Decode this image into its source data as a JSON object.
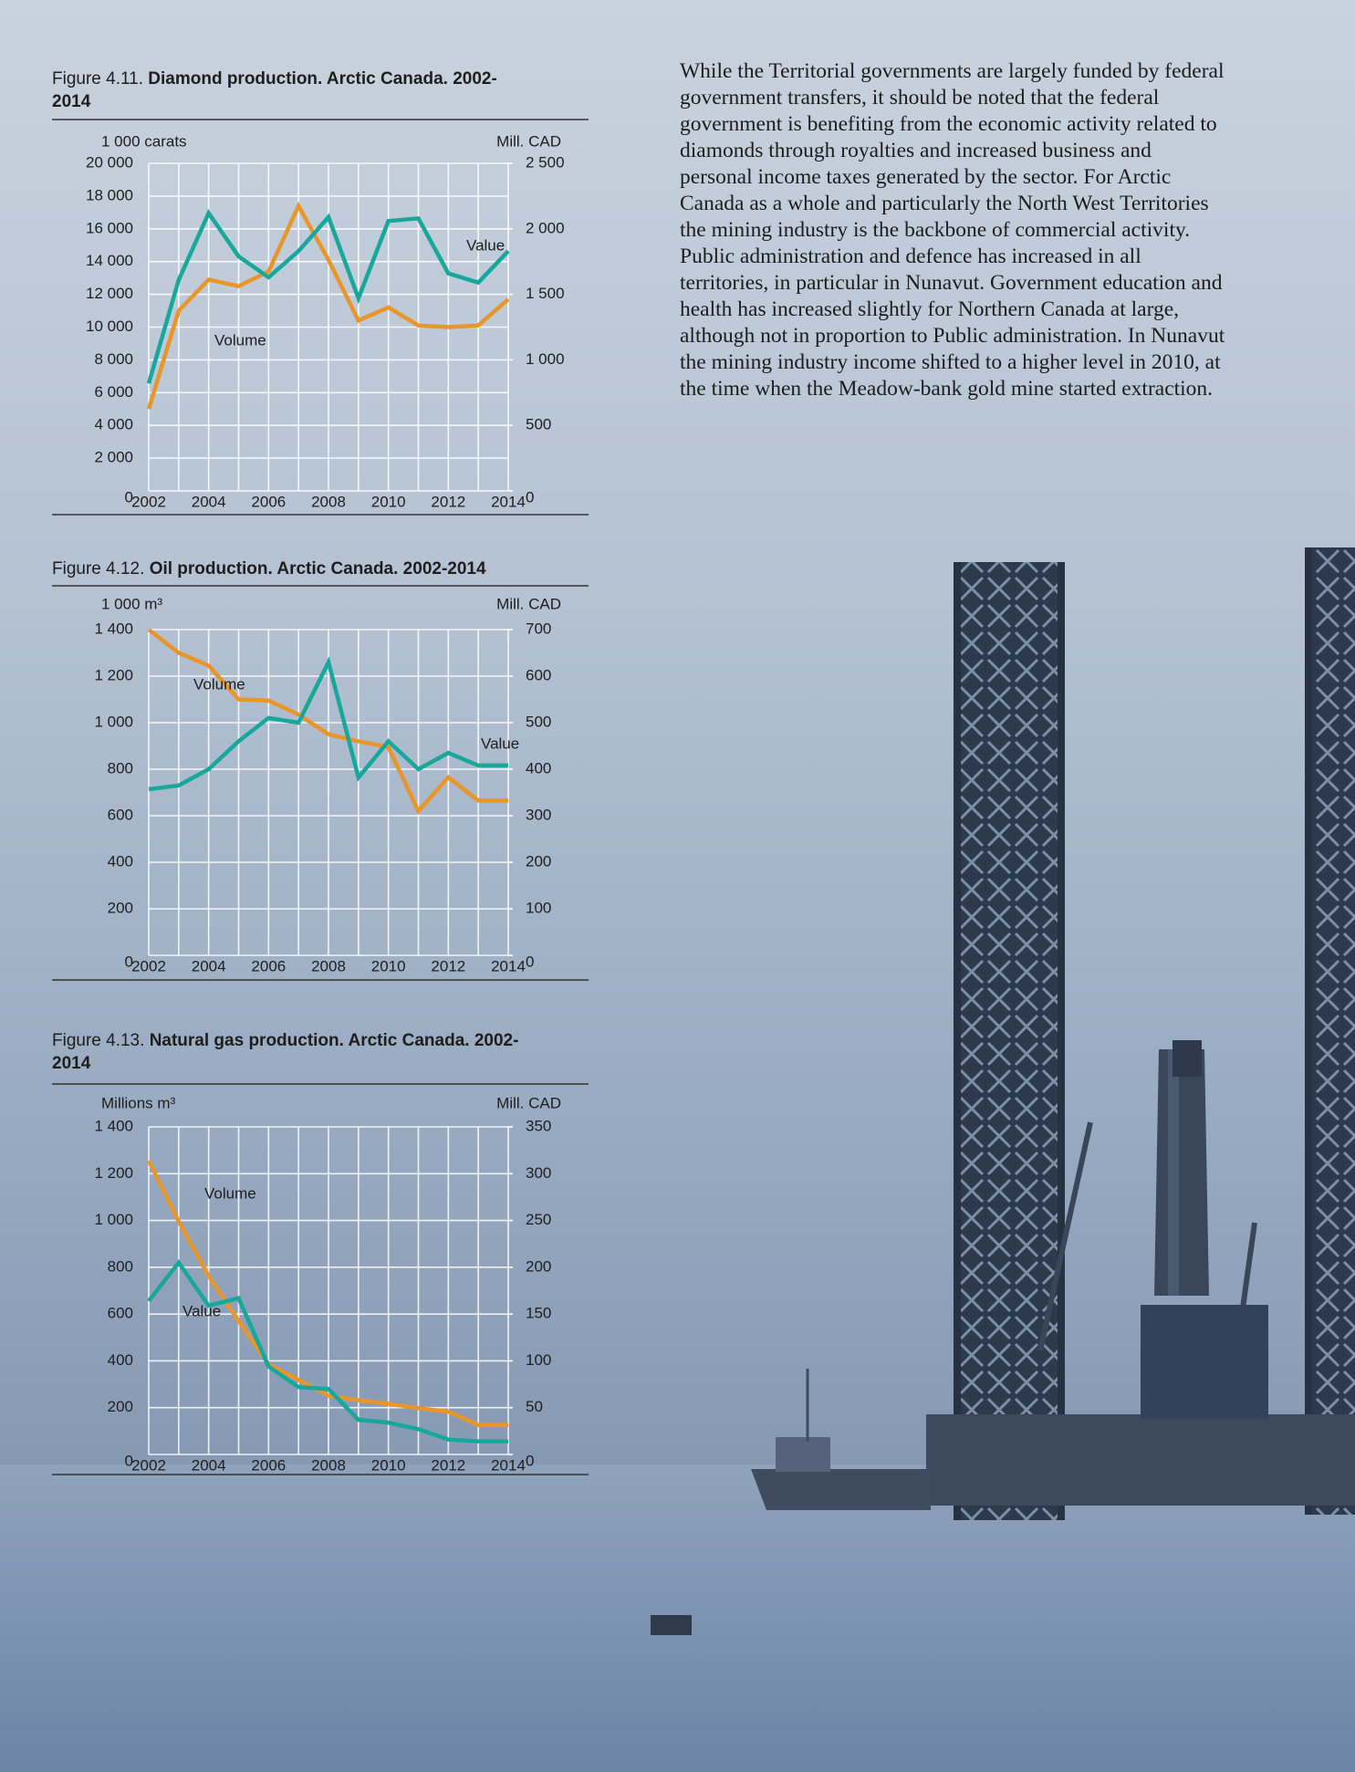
{
  "chart_data": [
    {
      "type": "line",
      "label": "Figure 4.11.",
      "title": "Diamond production. Arctic Canada. 2002-2014",
      "ylabel": "1 000 carats",
      "y2label": "Mill. CAD",
      "x": [
        2002,
        2003,
        2004,
        2005,
        2006,
        2007,
        2008,
        2009,
        2010,
        2011,
        2012,
        2013,
        2014
      ],
      "xlim": [
        2002,
        2014
      ],
      "xticks": [
        2002,
        2004,
        2006,
        2008,
        2010,
        2012,
        2014
      ],
      "ylim": [
        0,
        20000
      ],
      "yticks": [
        0,
        {
          "value": 2000,
          "label": "2 000"
        },
        {
          "value": 4000,
          "label": "4 000"
        },
        {
          "value": 6000,
          "label": "6 000"
        },
        {
          "value": 8000,
          "label": "8 000"
        },
        {
          "value": 10000,
          "label": "10 000"
        },
        {
          "value": 12000,
          "label": "12 000"
        },
        {
          "value": 14000,
          "label": "14 000"
        },
        {
          "value": 16000,
          "label": "16 000"
        },
        {
          "value": 18000,
          "label": "18 000"
        },
        {
          "value": 20000,
          "label": "20 000"
        }
      ],
      "y2lim": [
        0,
        2500
      ],
      "y2ticks": [
        0,
        500,
        {
          "value": 1000,
          "label": "1 000"
        },
        {
          "value": 1500,
          "label": "1 500"
        },
        {
          "value": 2000,
          "label": "2 000"
        },
        {
          "value": 2500,
          "label": "2 500"
        }
      ],
      "grid": true,
      "series": [
        {
          "name": "Volume",
          "color": "#e8962a",
          "values": [
            5000,
            11000,
            12900,
            12500,
            13400,
            17400,
            14100,
            10400,
            11200,
            10100,
            10000,
            10100,
            11700
          ]
        },
        {
          "name": "Value",
          "color": "#17a89b",
          "axis": "y2",
          "values": [
            820,
            1610,
            2120,
            1790,
            1630,
            1830,
            2090,
            1470,
            2060,
            2080,
            1660,
            1590,
            1830
          ]
        }
      ]
    },
    {
      "type": "line",
      "label": "Figure 4.12.",
      "title": "Oil production. Arctic Canada. 2002-2014",
      "ylabel": "1 000 m³",
      "y2label": "Mill. CAD",
      "x": [
        2002,
        2003,
        2004,
        2005,
        2006,
        2007,
        2008,
        2009,
        2010,
        2011,
        2012,
        2013,
        2014
      ],
      "xlim": [
        2002,
        2014
      ],
      "xticks": [
        2002,
        2004,
        2006,
        2008,
        2010,
        2012,
        2014
      ],
      "ylim": [
        0,
        1400
      ],
      "yticks": [
        0,
        200,
        400,
        600,
        800,
        {
          "value": 1000,
          "label": "1 000"
        },
        {
          "value": 1200,
          "label": "1 200"
        },
        {
          "value": 1400,
          "label": "1 400"
        }
      ],
      "y2lim": [
        0,
        700
      ],
      "y2ticks": [
        0,
        100,
        200,
        300,
        400,
        500,
        600,
        700
      ],
      "grid": true,
      "series": [
        {
          "name": "Volume",
          "color": "#e8962a",
          "values": [
            1400,
            1300,
            1245,
            1100,
            1095,
            1035,
            950,
            920,
            895,
            620,
            765,
            665,
            665
          ]
        },
        {
          "name": "Value",
          "color": "#17a89b",
          "axis": "y2",
          "values": [
            357,
            365,
            400,
            460,
            510,
            500,
            630,
            382,
            460,
            400,
            435,
            408,
            408
          ]
        }
      ]
    },
    {
      "type": "line",
      "label": "Figure 4.13.",
      "title": "Natural gas production. Arctic Canada. 2002-2014",
      "ylabel": "Millions  m³",
      "y2label": "Mill. CAD",
      "x": [
        2002,
        2003,
        2004,
        2005,
        2006,
        2007,
        2008,
        2009,
        2010,
        2011,
        2012,
        2013,
        2014
      ],
      "xlim": [
        2002,
        2014
      ],
      "xticks": [
        2002,
        2004,
        2006,
        2008,
        2010,
        2012,
        2014
      ],
      "ylim": [
        0,
        1400
      ],
      "yticks": [
        0,
        200,
        400,
        600,
        800,
        {
          "value": 1000,
          "label": "1 000"
        },
        {
          "value": 1200,
          "label": "1 200"
        },
        {
          "value": 1400,
          "label": "1 400"
        }
      ],
      "y2lim": [
        0,
        350
      ],
      "y2ticks": [
        0,
        50,
        100,
        150,
        200,
        250,
        300,
        350
      ],
      "grid": true,
      "series": [
        {
          "name": "Volume",
          "color": "#e8962a",
          "values": [
            1255,
            995,
            763,
            570,
            386,
            319,
            251,
            232,
            217,
            198,
            183,
            126,
            126
          ]
        },
        {
          "name": "Value",
          "color": "#17a89b",
          "axis": "y2",
          "values": [
            164,
            205,
            159,
            167,
            94,
            72,
            70,
            37,
            34,
            27,
            16,
            14,
            14
          ]
        }
      ]
    }
  ],
  "body_text": "While the Territorial governments are largely funded by federal government transfers, it should be noted that the federal government is benefiting from the economic activity related to diamonds through royalties and increased business and personal income taxes generated by the sector.  For Arctic Canada as a whole and particularly the North West Territories the mining industry is the backbone of commercial activity. Public administration and defence has increased in all territories, in particular in Nunavut. Government education and health has increased slightly for Northern Canada at large, although not in proportion to Public administration. In Nunavut the mining industry income shifted to a higher level in 2010, at the time when the Meadow-bank gold mine started extraction."
}
